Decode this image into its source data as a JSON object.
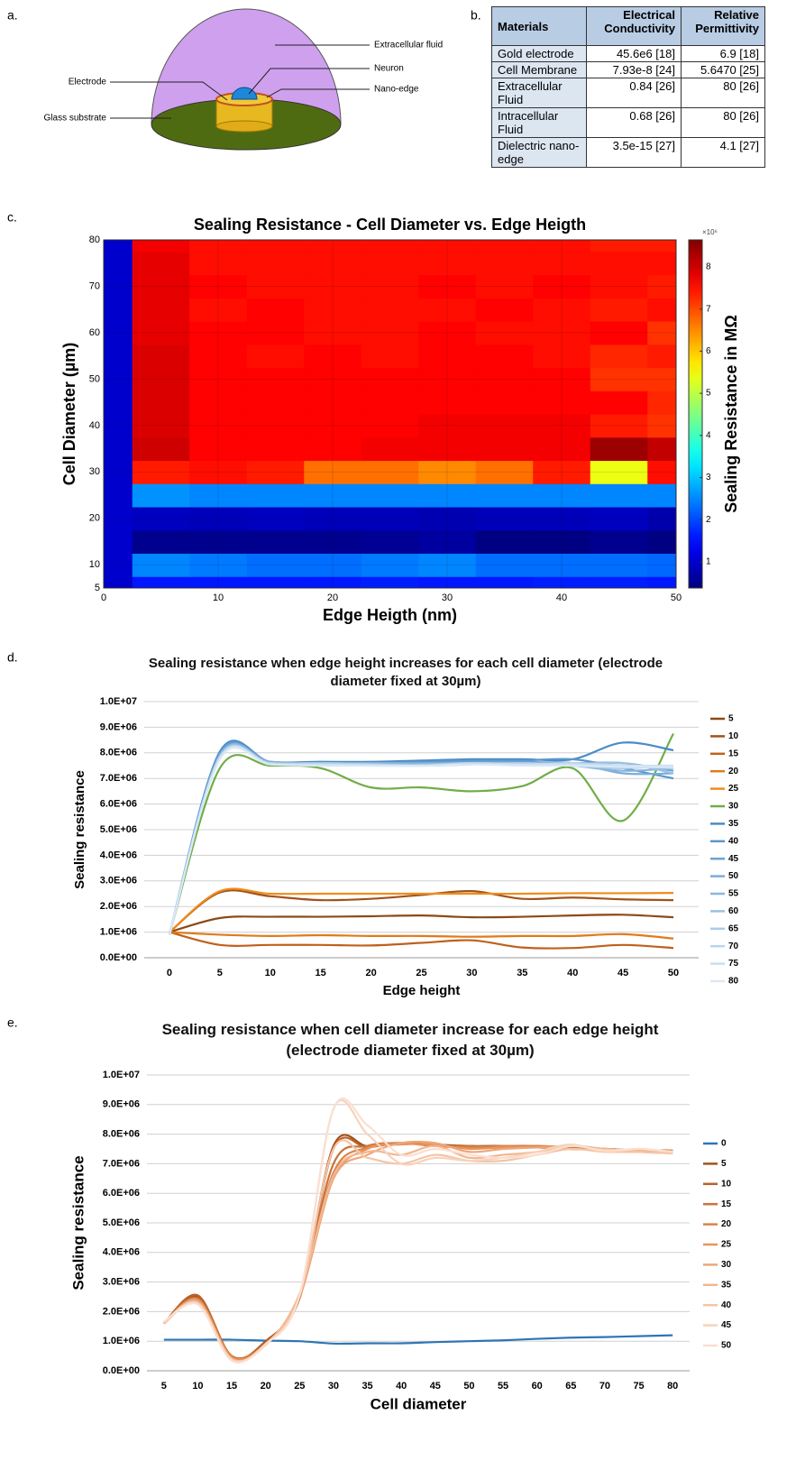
{
  "panel_labels": [
    "a.",
    "b.",
    "c.",
    "d.",
    "e."
  ],
  "diagram": {
    "labels": [
      "Extracellular fluid",
      "Neuron",
      "Nano-edge",
      "Electrode",
      "Glass substrate"
    ]
  },
  "table": {
    "header": [
      "Materials",
      "Electrical Conductivity",
      "Relative Permittivity"
    ],
    "rows": [
      [
        "Gold electrode",
        "45.6e6 [18]",
        "6.9 [18]"
      ],
      [
        "Cell Membrane",
        "7.93e-8 [24]",
        "5.6470 [25]"
      ],
      [
        "Extracellular Fluid",
        "0.84 [26]",
        "80 [26]"
      ],
      [
        "Intracellular Fluid",
        "0.68 [26]",
        "80 [26]"
      ],
      [
        "Dielectric nano-edge",
        "3.5e-15 [27]",
        "4.1 [27]"
      ]
    ]
  },
  "chart_data": [
    {
      "type": "heatmap",
      "title": "Sealing Resistance - Cell Diameter vs. Edge Heigth",
      "x_label": "Edge Heigth (nm)",
      "y_label": "Cell Diameter (µm)",
      "colorbar_label": "Sealing Resistance in MΩ",
      "colorbar_exponent": "×10⁶",
      "colormap": "jet",
      "x": [
        0,
        5,
        10,
        15,
        20,
        25,
        30,
        35,
        40,
        45,
        50
      ],
      "y": [
        5,
        10,
        15,
        20,
        25,
        30,
        35,
        40,
        45,
        50,
        55,
        60,
        65,
        70,
        75,
        80
      ],
      "z": [
        [
          1.0,
          1.6,
          1.6,
          1.6,
          1.6,
          1.65,
          1.6,
          1.6,
          1.65,
          1.65,
          1.6
        ],
        [
          1.0,
          2.5,
          2.4,
          2.3,
          2.3,
          2.4,
          2.5,
          2.3,
          2.3,
          2.3,
          2.25
        ],
        [
          1.0,
          0.5,
          0.5,
          0.5,
          0.5,
          0.55,
          0.65,
          0.4,
          0.4,
          0.5,
          0.4
        ],
        [
          1.0,
          0.9,
          0.85,
          0.9,
          0.85,
          0.85,
          0.8,
          0.85,
          0.85,
          0.9,
          0.75
        ],
        [
          1.0,
          2.6,
          2.5,
          2.5,
          2.5,
          2.5,
          2.5,
          2.5,
          2.5,
          2.5,
          2.5
        ],
        [
          1.0,
          7.4,
          7.5,
          7.4,
          6.7,
          6.7,
          6.5,
          6.7,
          7.4,
          5.4,
          7.5
        ],
        [
          1.0,
          8.0,
          7.6,
          7.6,
          7.6,
          7.7,
          7.7,
          7.7,
          7.7,
          8.4,
          8.1
        ],
        [
          1.0,
          7.9,
          7.6,
          7.6,
          7.6,
          7.6,
          7.7,
          7.7,
          7.7,
          7.4,
          7.2
        ],
        [
          1.0,
          7.9,
          7.6,
          7.6,
          7.6,
          7.6,
          7.6,
          7.6,
          7.6,
          7.6,
          7.3
        ],
        [
          1.0,
          7.9,
          7.6,
          7.6,
          7.6,
          7.6,
          7.6,
          7.6,
          7.6,
          7.2,
          7.2
        ],
        [
          1.0,
          7.9,
          7.6,
          7.5,
          7.6,
          7.5,
          7.6,
          7.6,
          7.5,
          7.3,
          7.4
        ],
        [
          1.0,
          7.8,
          7.6,
          7.6,
          7.5,
          7.5,
          7.6,
          7.5,
          7.5,
          7.6,
          7.2
        ],
        [
          1.0,
          7.8,
          7.5,
          7.6,
          7.5,
          7.5,
          7.5,
          7.6,
          7.5,
          7.4,
          7.5
        ],
        [
          1.0,
          7.8,
          7.6,
          7.5,
          7.5,
          7.5,
          7.6,
          7.5,
          7.6,
          7.5,
          7.4
        ],
        [
          1.0,
          7.8,
          7.5,
          7.5,
          7.5,
          7.5,
          7.5,
          7.5,
          7.5,
          7.5,
          7.5
        ],
        [
          1.0,
          7.7,
          7.5,
          7.5,
          7.5,
          7.5,
          7.5,
          7.5,
          7.5,
          7.4,
          7.4
        ]
      ],
      "xlim": [
        0,
        50
      ],
      "xticks": [
        0,
        10,
        20,
        30,
        40,
        50
      ],
      "ylim": [
        5,
        80
      ],
      "yticks": [
        5,
        10,
        20,
        30,
        40,
        50,
        60,
        70,
        80
      ],
      "clim": [
        0.38,
        8.64
      ],
      "cticks": [
        1,
        2,
        3,
        4,
        5,
        6,
        7,
        8
      ]
    },
    {
      "type": "line",
      "title": "Sealing resistance when edge height increases for each cell diameter (electrode diameter fixed at 30µm)",
      "x_label": "Edge height",
      "y_label": "Sealing resistance",
      "categories": [
        "0",
        "5",
        "10",
        "15",
        "20",
        "25",
        "30",
        "35",
        "40",
        "45",
        "50"
      ],
      "ylim": [
        0,
        10000000
      ],
      "yticks": [
        {
          "value": 0,
          "label": "0.0E+00"
        },
        {
          "value": 1000000,
          "label": "1.0E+06"
        },
        {
          "value": 2000000,
          "label": "2.0E+06"
        },
        {
          "value": 3000000,
          "label": "3.0E+06"
        },
        {
          "value": 4000000,
          "label": "4.0E+06"
        },
        {
          "value": 5000000,
          "label": "5.0E+06"
        },
        {
          "value": 6000000,
          "label": "6.0E+06"
        },
        {
          "value": 7000000,
          "label": "7.0E+06"
        },
        {
          "value": 8000000,
          "label": "8.0E+06"
        },
        {
          "value": 9000000,
          "label": "9.0E+06"
        },
        {
          "value": 10000000,
          "label": "1.0E+07"
        }
      ],
      "grid": true,
      "series": [
        {
          "name": "5",
          "color": "#8c4a16",
          "values": [
            1000000,
            1550000,
            1600000,
            1600000,
            1620000,
            1650000,
            1580000,
            1600000,
            1650000,
            1680000,
            1580000
          ]
        },
        {
          "name": "10",
          "color": "#a0521c",
          "values": [
            1000000,
            2550000,
            2400000,
            2250000,
            2300000,
            2450000,
            2600000,
            2300000,
            2350000,
            2280000,
            2250000
          ]
        },
        {
          "name": "15",
          "color": "#c0601c",
          "values": [
            1000000,
            500000,
            500000,
            500000,
            480000,
            580000,
            680000,
            400000,
            380000,
            500000,
            380000
          ]
        },
        {
          "name": "20",
          "color": "#e07b1a",
          "values": [
            1000000,
            900000,
            850000,
            880000,
            850000,
            850000,
            820000,
            850000,
            850000,
            920000,
            750000
          ]
        },
        {
          "name": "25",
          "color": "#f08c1a",
          "values": [
            1000000,
            2600000,
            2500000,
            2500000,
            2500000,
            2500000,
            2500000,
            2500000,
            2520000,
            2520000,
            2530000
          ]
        },
        {
          "name": "30",
          "color": "#70ad47",
          "values": [
            900000,
            7400000,
            7500000,
            7400000,
            6650000,
            6650000,
            6500000,
            6700000,
            7400000,
            5350000,
            8750000
          ]
        },
        {
          "name": "35",
          "color": "#4a8bc4",
          "values": [
            900000,
            8050000,
            7650000,
            7650000,
            7650000,
            7700000,
            7750000,
            7750000,
            7750000,
            8400000,
            8100000
          ]
        },
        {
          "name": "40",
          "color": "#5a97cc",
          "values": [
            900000,
            8000000,
            7600000,
            7600000,
            7600000,
            7650000,
            7700000,
            7700000,
            7750000,
            7400000,
            7000000
          ]
        },
        {
          "name": "45",
          "color": "#6aa2d2",
          "values": [
            900000,
            7950000,
            7600000,
            7600000,
            7600000,
            7600000,
            7650000,
            7650000,
            7600000,
            7600000,
            7300000
          ]
        },
        {
          "name": "50",
          "color": "#7aacd8",
          "values": [
            900000,
            7900000,
            7650000,
            7600000,
            7600000,
            7600000,
            7600000,
            7600000,
            7600000,
            7200000,
            7200000
          ]
        },
        {
          "name": "55",
          "color": "#8ab6dc",
          "values": [
            900000,
            7900000,
            7600000,
            7550000,
            7600000,
            7550000,
            7600000,
            7600000,
            7500000,
            7300000,
            7400000
          ]
        },
        {
          "name": "60",
          "color": "#9ac0e2",
          "values": [
            900000,
            7850000,
            7600000,
            7600000,
            7550000,
            7550000,
            7600000,
            7550000,
            7550000,
            7600000,
            7200000
          ]
        },
        {
          "name": "65",
          "color": "#aacae8",
          "values": [
            900000,
            7850000,
            7550000,
            7600000,
            7550000,
            7500000,
            7550000,
            7600000,
            7500000,
            7400000,
            7500000
          ]
        },
        {
          "name": "70",
          "color": "#bad4ec",
          "values": [
            900000,
            7800000,
            7600000,
            7550000,
            7550000,
            7500000,
            7600000,
            7550000,
            7600000,
            7500000,
            7400000
          ]
        },
        {
          "name": "75",
          "color": "#cadef2",
          "values": [
            900000,
            7800000,
            7550000,
            7550000,
            7500000,
            7500000,
            7550000,
            7550000,
            7550000,
            7500000,
            7500000
          ]
        },
        {
          "name": "80",
          "color": "#dae8f6",
          "values": [
            900000,
            7750000,
            7550000,
            7500000,
            7500000,
            7500000,
            7550000,
            7500000,
            7500000,
            7450000,
            7450000
          ]
        }
      ]
    },
    {
      "type": "line",
      "title": "Sealing resistance when cell diameter increase for each edge height (electrode diameter fixed at 30µm)",
      "x_label": "Cell diameter",
      "y_label": "Sealing resistance",
      "categories": [
        "5",
        "10",
        "15",
        "20",
        "25",
        "30",
        "35",
        "40",
        "45",
        "50",
        "55",
        "60",
        "65",
        "70",
        "75",
        "80"
      ],
      "ylim": [
        0,
        10000000
      ],
      "yticks": [
        {
          "value": 0,
          "label": "0.0E+00"
        },
        {
          "value": 1000000,
          "label": "1.0E+06"
        },
        {
          "value": 2000000,
          "label": "2.0E+06"
        },
        {
          "value": 3000000,
          "label": "3.0E+06"
        },
        {
          "value": 4000000,
          "label": "4.0E+06"
        },
        {
          "value": 5000000,
          "label": "5.0E+06"
        },
        {
          "value": 6000000,
          "label": "6.0E+06"
        },
        {
          "value": 7000000,
          "label": "7.0E+06"
        },
        {
          "value": 8000000,
          "label": "8.0E+06"
        },
        {
          "value": 9000000,
          "label": "9.0E+06"
        },
        {
          "value": 10000000,
          "label": "1.0E+07"
        }
      ],
      "grid": true,
      "series": [
        {
          "name": "0",
          "color": "#2e75b6",
          "values": [
            1050000,
            1050000,
            1050000,
            1020000,
            1000000,
            920000,
            930000,
            930000,
            970000,
            1000000,
            1030000,
            1080000,
            1120000,
            1140000,
            1170000,
            1200000
          ]
        },
        {
          "name": "5",
          "color": "#a0521c",
          "values": [
            1600000,
            2500000,
            450000,
            1000000,
            2500000,
            7600000,
            7600000,
            7700000,
            7650000,
            7600000,
            7600000,
            7550000,
            7550000,
            7500000,
            7450000,
            7450000
          ]
        },
        {
          "name": "10",
          "color": "#b8622a",
          "values": [
            1600000,
            2550000,
            500000,
            950000,
            2450000,
            7500000,
            7550000,
            7700000,
            7600000,
            7600000,
            7550000,
            7550000,
            7500000,
            7500000,
            7450000,
            7450000
          ]
        },
        {
          "name": "15",
          "color": "#c8733a",
          "values": [
            1600000,
            2450000,
            500000,
            950000,
            2500000,
            7000000,
            7600000,
            7700000,
            7600000,
            7600000,
            7550000,
            7600000,
            7550000,
            7500000,
            7450000,
            7400000
          ]
        },
        {
          "name": "20",
          "color": "#d8844a",
          "values": [
            1600000,
            2400000,
            480000,
            900000,
            2500000,
            6700000,
            7550000,
            7700000,
            7600000,
            7550000,
            7600000,
            7600000,
            7500000,
            7500000,
            7450000,
            7400000
          ]
        },
        {
          "name": "25",
          "color": "#e8955a",
          "values": [
            1600000,
            2400000,
            450000,
            900000,
            2500000,
            6500000,
            7500000,
            7650000,
            7650000,
            7500000,
            7550000,
            7550000,
            7500000,
            7450000,
            7400000,
            7450000
          ]
        },
        {
          "name": "30",
          "color": "#eea67a",
          "values": [
            1600000,
            2350000,
            400000,
            880000,
            2550000,
            6500000,
            7300000,
            7700000,
            7700000,
            7400000,
            7500000,
            7550000,
            7600000,
            7500000,
            7450000,
            7400000
          ]
        },
        {
          "name": "35",
          "color": "#f2b690",
          "values": [
            1600000,
            2300000,
            400000,
            880000,
            2600000,
            6600000,
            7400000,
            7300000,
            7600000,
            7200000,
            7300000,
            7400000,
            7600000,
            7500000,
            7400000,
            7350000
          ]
        },
        {
          "name": "40",
          "color": "#f5c4a6",
          "values": [
            1650000,
            2300000,
            400000,
            880000,
            2550000,
            7500000,
            7200000,
            7000000,
            7300000,
            7100000,
            7100000,
            7300000,
            7500000,
            7400000,
            7400000,
            7350000
          ]
        },
        {
          "name": "45",
          "color": "#f8d2bc",
          "values": [
            1650000,
            2250000,
            350000,
            900000,
            2550000,
            8850000,
            8000000,
            7000000,
            7200000,
            7100000,
            7200000,
            7400000,
            7650000,
            7400000,
            7500000,
            7400000
          ]
        },
        {
          "name": "50",
          "color": "#fadfd0",
          "values": [
            1650000,
            2250000,
            350000,
            900000,
            2550000,
            8850000,
            8300000,
            7300000,
            7500000,
            7300000,
            7200000,
            7300000,
            7600000,
            7450000,
            7500000,
            7400000
          ]
        }
      ]
    }
  ]
}
